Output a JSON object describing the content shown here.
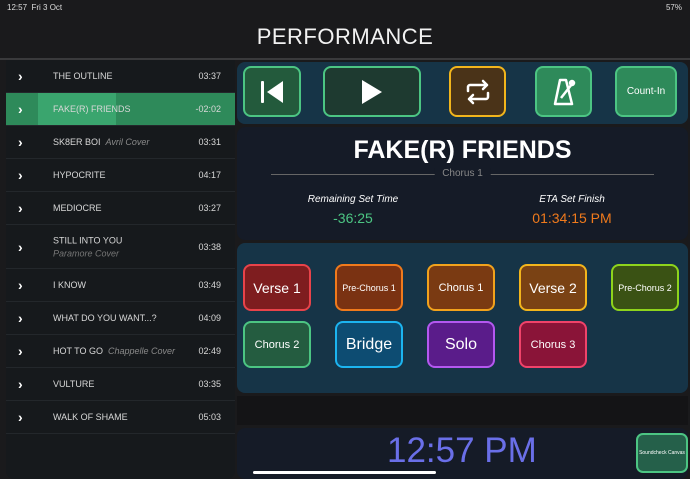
{
  "status": {
    "time": "12:57",
    "date": "Fri 3 Oct",
    "battery": "57%"
  },
  "header": {
    "title": "PERFORMANCE"
  },
  "setlist": [
    {
      "name": "THE OUTLINE",
      "note": "",
      "duration": "03:37"
    },
    {
      "name": "FAKE(R) FRIENDS",
      "note": "",
      "duration": "-02:02",
      "active": true
    },
    {
      "name": "SK8ER BOI",
      "note": "Avril Cover",
      "duration": "03:31"
    },
    {
      "name": "HYPOCRITE",
      "note": "",
      "duration": "04:17"
    },
    {
      "name": "MEDIOCRE",
      "note": "",
      "duration": "03:27"
    },
    {
      "name": "STILL INTO YOU",
      "sub": "Paramore Cover",
      "duration": "03:38"
    },
    {
      "name": "I KNOW",
      "note": "",
      "duration": "03:49"
    },
    {
      "name": "WHAT DO YOU WANT...?",
      "note": "",
      "duration": "04:09"
    },
    {
      "name": "HOT TO GO",
      "note": "Chappelle Cover",
      "duration": "02:49"
    },
    {
      "name": "VULTURE",
      "note": "",
      "duration": "03:35"
    },
    {
      "name": "WALK OF SHAME",
      "note": "",
      "duration": "05:03"
    }
  ],
  "toolbar": {
    "count_in": "Count-In"
  },
  "now_playing": {
    "song": "FAKE(R) FRIENDS",
    "section": "Chorus 1",
    "remaining_label": "Remaining Set Time",
    "remaining": "-36:25",
    "eta_label": "ETA Set Finish",
    "eta": "01:34:15 PM"
  },
  "sections": [
    {
      "label": "Verse 1",
      "bg": "#7e1d1f",
      "border": "#e8434a",
      "size": 14
    },
    {
      "label": "Pre-Chorus 1",
      "bg": "#7a3212",
      "border": "#f07a1c",
      "size": 9
    },
    {
      "label": "Chorus 1",
      "bg": "#7a3a12",
      "border": "#f2a21c",
      "size": 11
    },
    {
      "label": "Verse 2",
      "bg": "#7a4214",
      "border": "#f2b51c",
      "size": 14
    },
    {
      "label": "Pre-Chorus 2",
      "bg": "#3a5214",
      "border": "#8ed41c",
      "size": 9
    },
    {
      "label": "Chorus 2",
      "bg": "#245c40",
      "border": "#4cc583",
      "size": 11
    },
    {
      "label": "Bridge",
      "bg": "#0d4c72",
      "border": "#1cb4f0",
      "size": 16
    },
    {
      "label": "Solo",
      "bg": "#5a1c8a",
      "border": "#b458f0",
      "size": 16
    },
    {
      "label": "Chorus 3",
      "bg": "#8a1438",
      "border": "#f0436a",
      "size": 11
    }
  ],
  "clock": {
    "time": "12:57 PM",
    "soundcheck": "Soundcheck Canvas"
  },
  "colors": {
    "accent_green": "#4cc583",
    "eta_orange": "#f07a1c",
    "clock_blue": "#6a6fe8"
  }
}
